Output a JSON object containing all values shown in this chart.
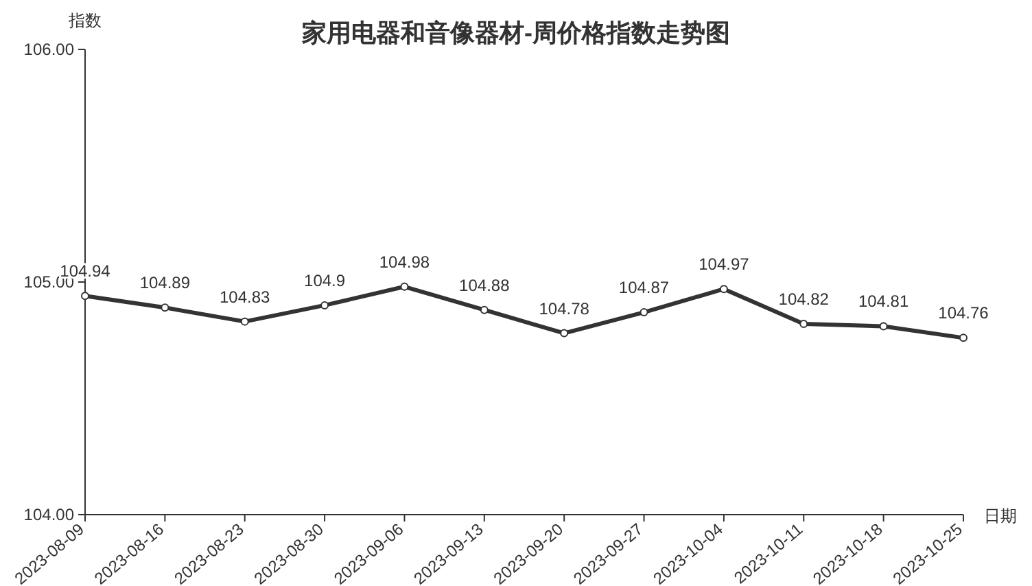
{
  "chart_data": {
    "type": "line",
    "title": "家用电器和音像器材-周价格指数走势图",
    "xlabel": "日期",
    "ylabel": "指数",
    "categories": [
      "2023-08-09",
      "2023-08-16",
      "2023-08-23",
      "2023-08-30",
      "2023-09-06",
      "2023-09-13",
      "2023-09-20",
      "2023-09-27",
      "2023-10-04",
      "2023-10-11",
      "2023-10-18",
      "2023-10-25"
    ],
    "series": [
      {
        "color": "#333333",
        "values": [
          104.94,
          104.89,
          104.83,
          104.9,
          104.98,
          104.88,
          104.78,
          104.87,
          104.97,
          104.82,
          104.81,
          104.76
        ]
      }
    ],
    "ylim": [
      104,
      106
    ],
    "yticks": [
      {
        "value": 104,
        "label": "104.00"
      },
      {
        "value": 105,
        "label": "105.00"
      },
      {
        "value": 106,
        "label": "106.00"
      }
    ],
    "data_labels": true,
    "marker": "circle"
  }
}
